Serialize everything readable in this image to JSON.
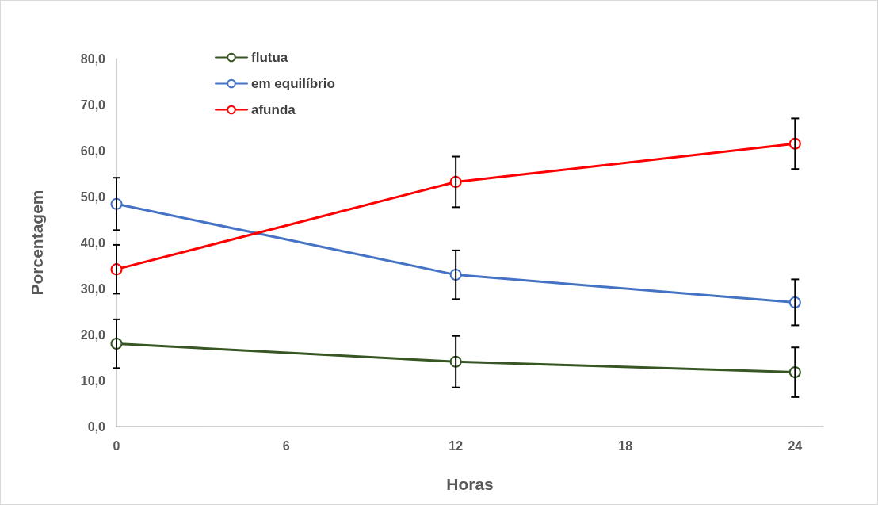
{
  "chart_data": {
    "type": "line",
    "xlabel": "Horas",
    "ylabel": "Porcentagem",
    "x": [
      0,
      12,
      24
    ],
    "series": [
      {
        "name": "flutua",
        "color": "#375623",
        "values": [
          18.0,
          14.1,
          11.8
        ],
        "errors": [
          5.3,
          5.6,
          5.4
        ]
      },
      {
        "name": "em equilíbrio",
        "color": "#4472c4",
        "values": [
          48.4,
          33.0,
          27.0
        ],
        "errors": [
          5.7,
          5.3,
          5.0
        ]
      },
      {
        "name": "afunda",
        "color": "#ff0000",
        "values": [
          34.2,
          53.2,
          61.5
        ],
        "errors": [
          5.3,
          5.5,
          5.5
        ]
      }
    ],
    "xlim": [
      0,
      25
    ],
    "xticks": [
      0,
      6,
      12,
      18,
      24
    ],
    "ylim": [
      0,
      80
    ],
    "yticks": [
      {
        "value": 0,
        "label": "0,0"
      },
      {
        "value": 10,
        "label": "10,0"
      },
      {
        "value": 20,
        "label": "20,0"
      },
      {
        "value": 30,
        "label": "30,0"
      },
      {
        "value": 40,
        "label": "40,0"
      },
      {
        "value": 50,
        "label": "50,0"
      },
      {
        "value": 60,
        "label": "60,0"
      },
      {
        "value": 70,
        "label": "70,0"
      },
      {
        "value": 80,
        "label": "80,0"
      }
    ],
    "grid": false,
    "legend": "top left",
    "marker": "circle",
    "line_style": "solid"
  }
}
